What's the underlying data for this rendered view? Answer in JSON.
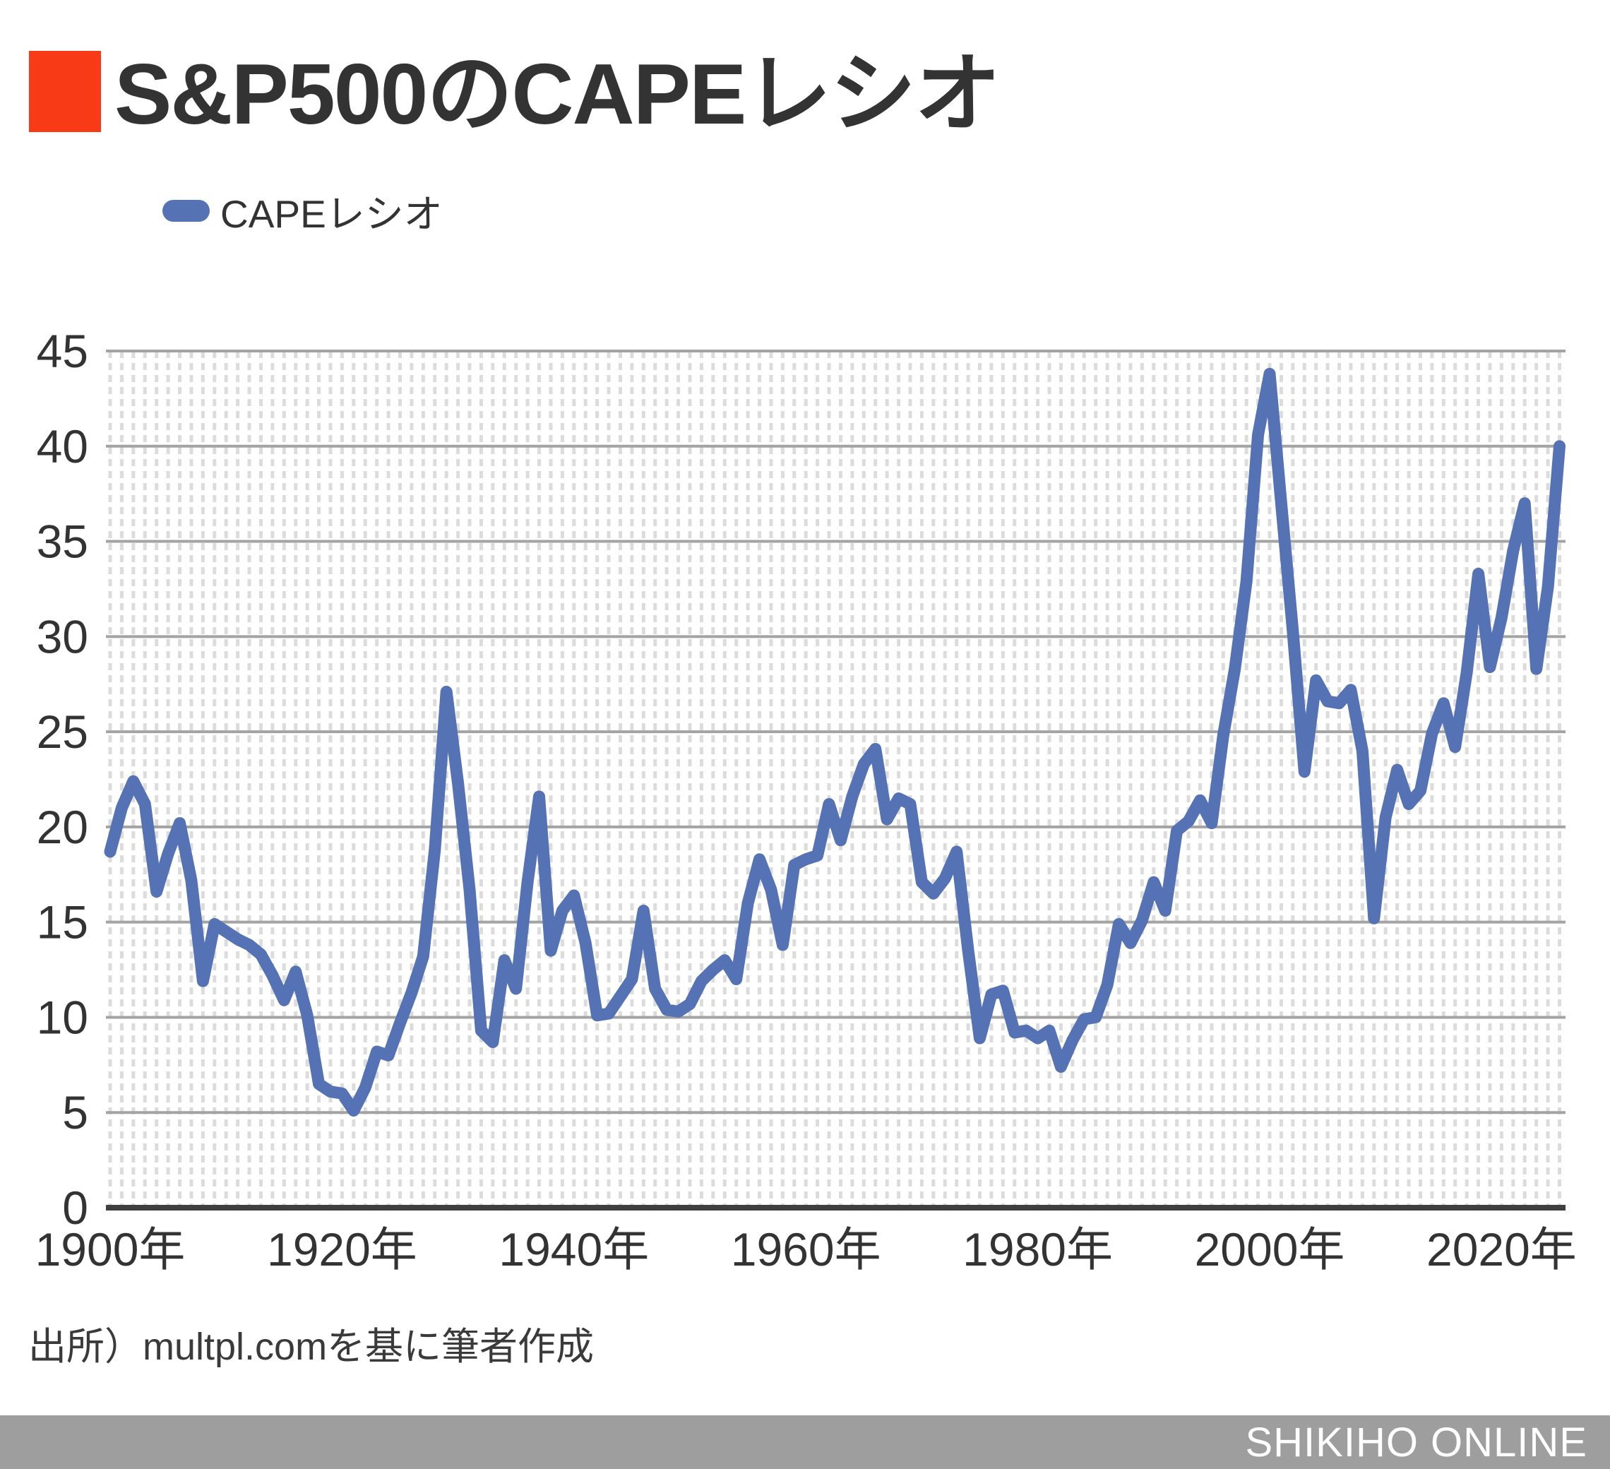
{
  "title": {
    "text": "S&P500のCAPEレシオ",
    "accent_color": "#f93a16",
    "text_color": "#333333"
  },
  "legend": {
    "label": "CAPEレシオ",
    "swatch_color": "#5572b5"
  },
  "source": "出所）multpl.comを基に筆者作成",
  "footer": {
    "text": "SHIKIHO ONLINE",
    "bg_color": "#9e9e9e",
    "text_color": "#ffffff"
  },
  "chart_data": {
    "type": "line",
    "title": "S&P500のCAPEレシオ",
    "xlabel": "",
    "ylabel": "",
    "ylim": [
      0,
      45
    ],
    "xlim": [
      1899.6,
      2026.2
    ],
    "grid": {
      "horizontal": true,
      "vertical_minor_dashed": true,
      "h_color": "#a3a3a3",
      "v_dash_color": "#dcdcdc",
      "axis_color": "#3f3f3f"
    },
    "legend_position": "top-left",
    "y_ticks": [
      0,
      5,
      10,
      15,
      20,
      25,
      30,
      35,
      40,
      45
    ],
    "x_ticks": [
      {
        "year": 1900,
        "label": "1900年"
      },
      {
        "year": 1920,
        "label": "1920年"
      },
      {
        "year": 1940,
        "label": "1940年"
      },
      {
        "year": 1960,
        "label": "1960年"
      },
      {
        "year": 1980,
        "label": "1980年"
      },
      {
        "year": 2000,
        "label": "2000年"
      },
      {
        "year": 2020,
        "label": "2020年"
      }
    ],
    "series": [
      {
        "name": "CAPEレシオ",
        "color": "#5572b5",
        "x": [
          1900,
          1901,
          1902,
          1903,
          1904,
          1905,
          1906,
          1907,
          1908,
          1909,
          1910,
          1911,
          1912,
          1913,
          1914,
          1915,
          1916,
          1917,
          1918,
          1919,
          1920,
          1921,
          1922,
          1923,
          1924,
          1925,
          1926,
          1927,
          1928,
          1929,
          1930,
          1931,
          1932,
          1933,
          1934,
          1935,
          1936,
          1937,
          1938,
          1939,
          1940,
          1941,
          1942,
          1943,
          1944,
          1945,
          1946,
          1947,
          1948,
          1949,
          1950,
          1951,
          1952,
          1953,
          1954,
          1955,
          1956,
          1957,
          1958,
          1959,
          1960,
          1961,
          1962,
          1963,
          1964,
          1965,
          1966,
          1967,
          1968,
          1969,
          1970,
          1971,
          1972,
          1973,
          1974,
          1975,
          1976,
          1977,
          1978,
          1979,
          1980,
          1981,
          1982,
          1983,
          1984,
          1985,
          1986,
          1987,
          1988,
          1989,
          1990,
          1991,
          1992,
          1993,
          1994,
          1995,
          1996,
          1997,
          1998,
          1999,
          2000,
          2001,
          2002,
          2003,
          2004,
          2005,
          2006,
          2007,
          2008,
          2009,
          2010,
          2011,
          2012,
          2013,
          2014,
          2015,
          2016,
          2017,
          2018,
          2019,
          2020,
          2021,
          2022,
          2023,
          2024,
          2025
        ],
        "values": [
          18.7,
          21.0,
          22.4,
          21.2,
          16.6,
          18.6,
          20.2,
          17.2,
          11.9,
          14.9,
          14.5,
          14.1,
          13.8,
          13.3,
          12.2,
          10.9,
          12.4,
          10.1,
          6.5,
          6.1,
          6.0,
          5.1,
          6.3,
          8.2,
          8.0,
          9.7,
          11.3,
          13.2,
          18.8,
          27.1,
          22.3,
          16.7,
          9.3,
          8.7,
          13.0,
          11.5,
          17.1,
          21.6,
          13.5,
          15.6,
          16.4,
          13.9,
          10.1,
          10.2,
          11.1,
          12.0,
          15.6,
          11.5,
          10.4,
          10.3,
          10.7,
          11.9,
          12.5,
          13.0,
          12.0,
          16.0,
          18.3,
          16.7,
          13.8,
          18.0,
          18.3,
          18.5,
          21.2,
          19.3,
          21.6,
          23.3,
          24.1,
          20.4,
          21.5,
          21.2,
          17.1,
          16.5,
          17.3,
          18.7,
          13.5,
          8.9,
          11.2,
          11.4,
          9.2,
          9.3,
          8.9,
          9.3,
          7.4,
          8.8,
          9.9,
          10.0,
          11.7,
          14.9,
          13.9,
          15.1,
          17.1,
          15.6,
          19.8,
          20.3,
          21.4,
          20.2,
          24.8,
          28.3,
          32.9,
          40.6,
          43.8,
          37.0,
          30.3,
          22.9,
          27.7,
          26.6,
          26.5,
          27.2,
          24.0,
          15.2,
          20.5,
          23.0,
          21.2,
          21.9,
          24.9,
          26.5,
          24.2,
          28.1,
          33.3,
          28.4,
          31.0,
          34.5,
          37.0,
          28.3,
          32.6,
          40.0
        ]
      }
    ]
  }
}
